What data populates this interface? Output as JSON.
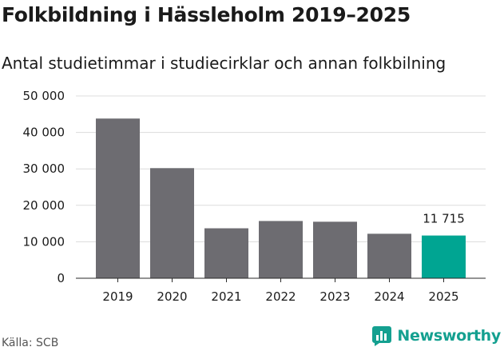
{
  "chart_data": {
    "type": "bar",
    "title": "Folkbildning i Hässleholm 2019–2025",
    "subtitle": "Antal studietimmar i studiecirklar och annan folkbilning",
    "categories": [
      "2019",
      "2020",
      "2021",
      "2022",
      "2023",
      "2024",
      "2025"
    ],
    "values": [
      43800,
      30200,
      13700,
      15700,
      15500,
      12200,
      11715
    ],
    "highlight_index": 6,
    "data_labels": [
      {
        "index": 6,
        "text": "11 715"
      }
    ],
    "y_ticks": [
      "0",
      "10 000",
      "20 000",
      "30 000",
      "40 000",
      "50 000"
    ],
    "ylim": [
      0,
      50000
    ],
    "xlabel": "",
    "ylabel": "",
    "grid": true,
    "colors": {
      "bar": "#6d6c71",
      "highlight": "#00a592",
      "grid": "#dcdcdc",
      "axis": "#2a2a2a"
    }
  },
  "footer": {
    "source": "Källa: SCB",
    "brand": "Newsworthy",
    "brand_icon": "bar-chart-icon",
    "brand_color": "#14a090"
  }
}
